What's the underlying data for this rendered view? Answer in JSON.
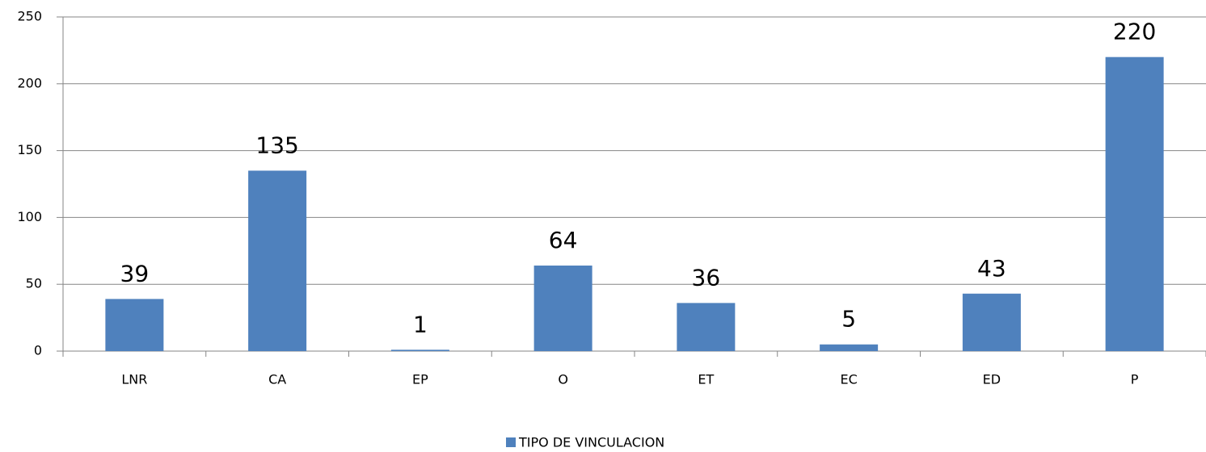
{
  "chart_data": {
    "type": "bar",
    "categories": [
      "LNR",
      "CA",
      "EP",
      "O",
      "ET",
      "EC",
      "ED",
      "P"
    ],
    "series": [
      {
        "name": "TIPO DE VINCULACION",
        "color": "#4f81bd",
        "values": [
          39,
          135,
          1,
          64,
          36,
          5,
          43,
          220
        ]
      }
    ],
    "ylim": [
      0,
      250
    ],
    "yticks": [
      0,
      50,
      100,
      150,
      200,
      250
    ],
    "grid": true,
    "legend": "bottom"
  }
}
